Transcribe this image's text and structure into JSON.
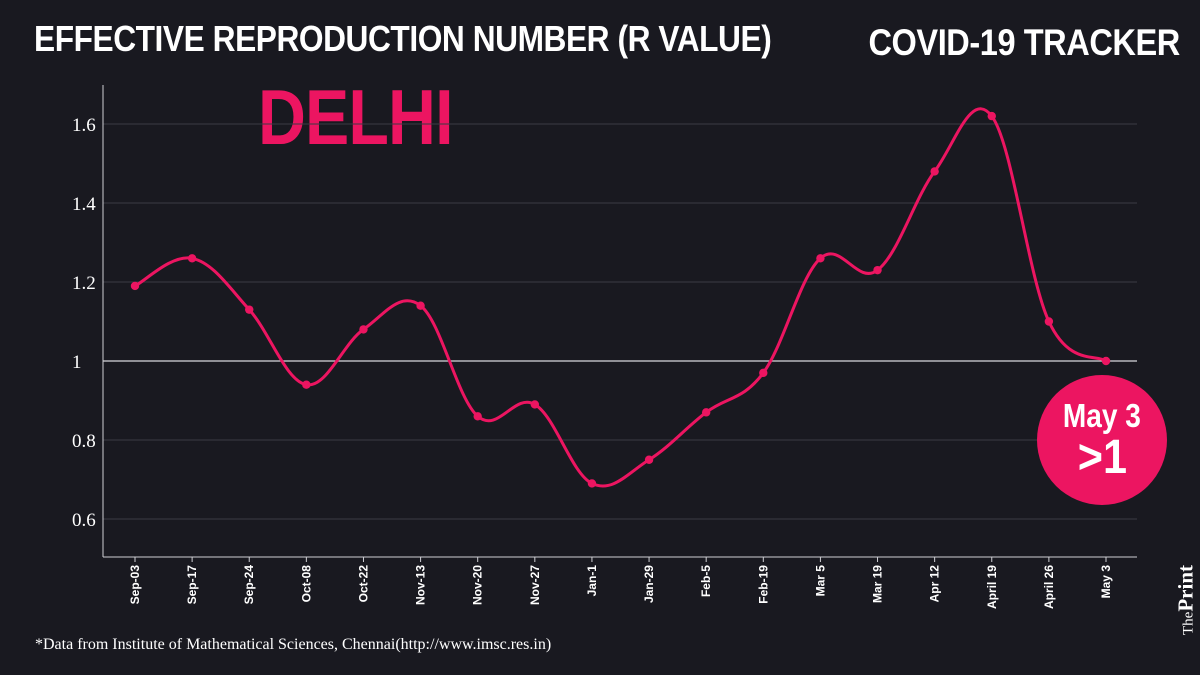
{
  "header": {
    "title": "EFFECTIVE REPRODUCTION NUMBER (R VALUE)",
    "tracker_label": "COVID-19 TRACKER",
    "city": "DELHI"
  },
  "badge": {
    "date": "May 3",
    "value": ">1"
  },
  "footnote": "*Data from Institute of Mathematical Sciences, Chennai(http://www.imsc.res.in)",
  "brand": {
    "the": "The",
    "print": "Print"
  },
  "colors": {
    "background": "#191920",
    "line": "#ec1561",
    "text": "#ffffff",
    "grid": "#3a3a44"
  },
  "chart_data": {
    "type": "line",
    "title": "EFFECTIVE REPRODUCTION NUMBER (R VALUE)",
    "xlabel": "",
    "ylabel": "",
    "categories": [
      "Sep-03",
      "Sep-17",
      "Sep-24",
      "Oct-08",
      "Oct-22",
      "Nov-13",
      "Nov-20",
      "Nov-27",
      "Jan-1",
      "Jan-29",
      "Feb-5",
      "Feb-19",
      "Mar 5",
      "Mar 19",
      "Apr 12",
      "April 19",
      "April 26",
      "May 3"
    ],
    "series": [
      {
        "values": [
          1.19,
          1.26,
          1.13,
          0.94,
          1.08,
          1.14,
          0.86,
          0.89,
          0.69,
          0.75,
          0.87,
          0.97,
          1.26,
          1.23,
          1.48,
          1.62,
          1.1,
          1.0
        ]
      }
    ],
    "yticks": [
      "0.6",
      "0.8",
      "1",
      "1.2",
      "1.4",
      "1.6"
    ],
    "ylim": [
      0.5,
      1.7
    ],
    "grid": true,
    "reference_line": 1
  }
}
